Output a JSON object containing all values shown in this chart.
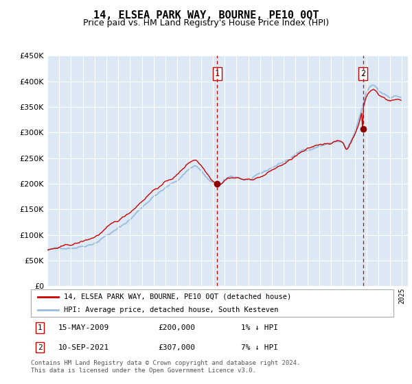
{
  "title": "14, ELSEA PARK WAY, BOURNE, PE10 0QT",
  "subtitle": "Price paid vs. HM Land Registry's House Price Index (HPI)",
  "legend_line1": "14, ELSEA PARK WAY, BOURNE, PE10 0QT (detached house)",
  "legend_line2": "HPI: Average price, detached house, South Kesteven",
  "footnote": "Contains HM Land Registry data © Crown copyright and database right 2024.\nThis data is licensed under the Open Government Licence v3.0.",
  "transaction1_date": "15-MAY-2009",
  "transaction1_price": "£200,000",
  "transaction1_hpi": "1% ↓ HPI",
  "transaction2_date": "10-SEP-2021",
  "transaction2_price": "£307,000",
  "transaction2_hpi": "7% ↓ HPI",
  "t1_x": 2009.375,
  "t1_y": 200000,
  "t2_x": 2021.708,
  "t2_y": 307000,
  "ylim": [
    0,
    450000
  ],
  "xlim": [
    1995,
    2025.5
  ],
  "yticks": [
    0,
    50000,
    100000,
    150000,
    200000,
    250000,
    300000,
    350000,
    400000,
    450000
  ],
  "plot_bg_color": "#dce9f5",
  "hpi_color": "#99bbdd",
  "price_color": "#cc0000",
  "vline_color": "#cc0000",
  "marker_color": "#8b0000",
  "grid_color": "#ffffff",
  "title_fontsize": 11,
  "subtitle_fontsize": 9
}
